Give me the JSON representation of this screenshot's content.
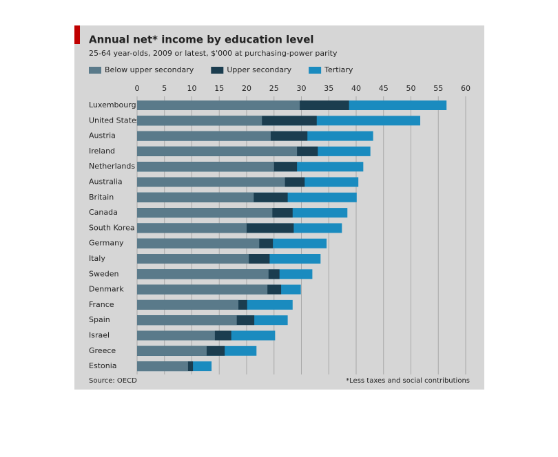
{
  "chart_data": {
    "type": "bar",
    "orientation": "horizontal",
    "overlap": true,
    "title": "Annual net* income by education level",
    "subtitle": "25-64 year-olds, 2009 or latest, $'000 at purchasing-power parity",
    "categories": [
      "Luxembourg",
      "United States",
      "Austria",
      "Ireland",
      "Netherlands",
      "Australia",
      "Britain",
      "Canada",
      "South Korea",
      "Germany",
      "Italy",
      "Sweden",
      "Denmark",
      "France",
      "Spain",
      "Israel",
      "Greece",
      "Estonia"
    ],
    "series": [
      {
        "name": "Tertiary",
        "color": "#1a8bbf",
        "values": [
          56.5,
          51.7,
          43.1,
          42.6,
          41.3,
          40.4,
          40.1,
          38.4,
          37.4,
          34.6,
          33.5,
          32,
          29.9,
          28.4,
          27.5,
          25.2,
          21.8,
          13.6
        ]
      },
      {
        "name": "Upper secondary",
        "color": "#1b3d4f",
        "values": [
          38.7,
          32.8,
          31.1,
          33,
          29.2,
          30.6,
          27.5,
          28.4,
          28.6,
          24.8,
          24.2,
          26,
          26.3,
          20.1,
          21.4,
          17.2,
          16,
          10.2
        ]
      },
      {
        "name": "Below upper secondary",
        "color": "#5a7a8a",
        "values": [
          29.7,
          22.8,
          24.4,
          29.2,
          25,
          27,
          21.3,
          24.7,
          20,
          22.3,
          20.4,
          24,
          23.8,
          18.5,
          18.2,
          14.2,
          12.7,
          9.3
        ]
      }
    ],
    "legend_order": [
      "Below upper secondary",
      "Upper secondary",
      "Tertiary"
    ],
    "xlim": [
      0,
      60
    ],
    "xticks": [
      0,
      5,
      10,
      15,
      20,
      25,
      30,
      35,
      40,
      45,
      50,
      55,
      60
    ],
    "grid": true,
    "source": "Source: OECD",
    "footnote": "*Less taxes and social contributions"
  }
}
